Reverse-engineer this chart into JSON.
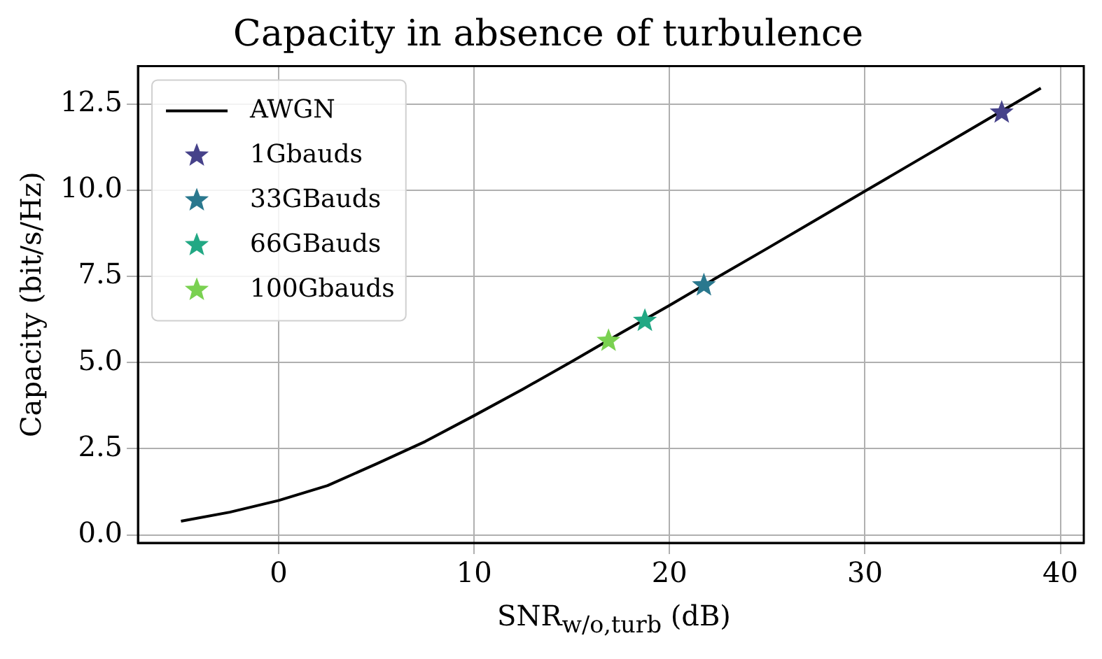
{
  "chart_data": {
    "type": "line",
    "title": "Capacity in absence of turbulence",
    "xlabel": "SNR$_{w/o,turb}$ (dB)",
    "ylabel": "Capacity (bit/s/Hz)",
    "xlim": [
      -7.2,
      41.2
    ],
    "xticks": [
      0,
      10,
      20,
      30,
      40
    ],
    "ylim": [
      -0.23,
      13.6
    ],
    "yticks": [
      {
        "value": 0,
        "label": "0.0"
      },
      {
        "value": 2.5,
        "label": "2.5"
      },
      {
        "value": 5,
        "label": "5.0"
      },
      {
        "value": 7.5,
        "label": "7.5"
      },
      {
        "value": 10,
        "label": "10.0"
      },
      {
        "value": 12.5,
        "label": "12.5"
      }
    ],
    "grid": true,
    "legend": "top left",
    "series": [
      {
        "name": "AWGN",
        "color": "#000000",
        "marker": "none",
        "line_style": "solid",
        "x": [
          -5,
          -2.5,
          0,
          2.5,
          5,
          7.5,
          10,
          12.5,
          15,
          17.5,
          20,
          22.5,
          25,
          27.5,
          30,
          32.5,
          35,
          37.5,
          39
        ],
        "values": [
          0.4,
          0.66,
          1.0,
          1.43,
          2.06,
          2.71,
          3.46,
          4.23,
          5.03,
          5.85,
          6.66,
          7.49,
          8.31,
          9.14,
          9.97,
          10.8,
          11.63,
          12.46,
          12.96
        ]
      },
      {
        "name": "1Gbauds",
        "type": "scatter",
        "color": "#46428a",
        "marker": "star",
        "x": [
          37.0
        ],
        "values": [
          12.25
        ]
      },
      {
        "name": "33GBauds",
        "type": "scatter",
        "color": "#2a788e",
        "marker": "star",
        "x": [
          21.76
        ],
        "values": [
          7.24
        ]
      },
      {
        "name": "66GBauds",
        "type": "scatter",
        "color": "#22a884",
        "marker": "star",
        "x": [
          18.74
        ],
        "values": [
          6.21
        ]
      },
      {
        "name": "100Gbauds",
        "type": "scatter",
        "color": "#7ad151",
        "marker": "star",
        "x": [
          16.88
        ],
        "values": [
          5.63
        ]
      }
    ]
  }
}
